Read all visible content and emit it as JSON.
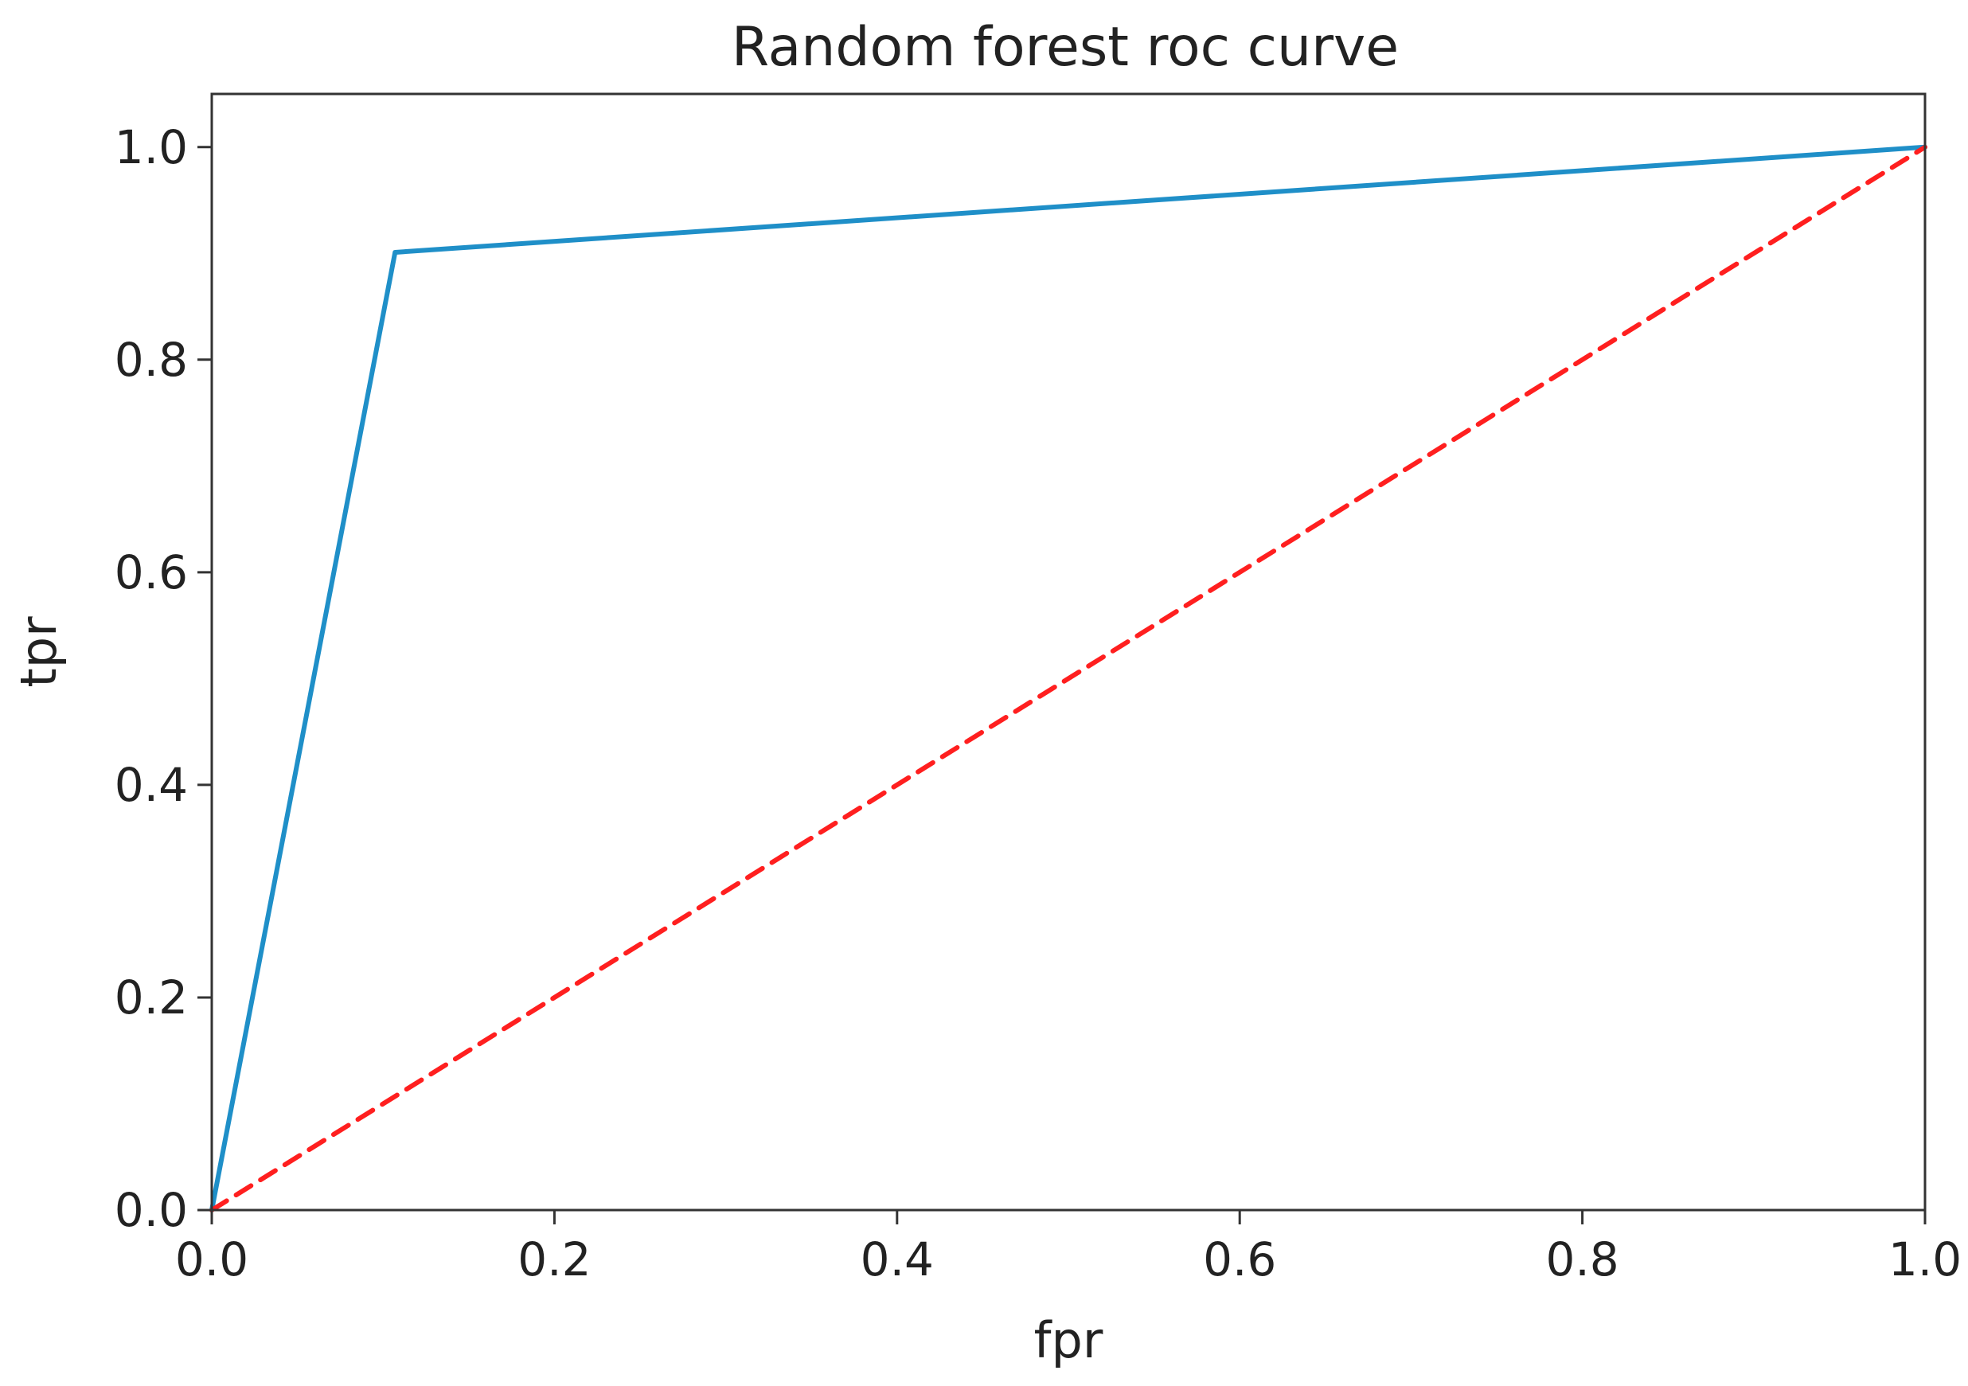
{
  "chart_data": {
    "type": "line",
    "title": "Random forest roc curve",
    "xlabel": "fpr",
    "ylabel": "tpr",
    "xlim": [
      0.0,
      1.0
    ],
    "ylim": [
      0.0,
      1.05
    ],
    "xticks": [
      0.0,
      0.2,
      0.4,
      0.6,
      0.8,
      1.0
    ],
    "yticks": [
      0.0,
      0.2,
      0.4,
      0.6,
      0.8,
      1.0
    ],
    "xtick_labels": [
      "0.0",
      "0.2",
      "0.4",
      "0.6",
      "0.8",
      "1.0"
    ],
    "ytick_labels": [
      "0.0",
      "0.2",
      "0.4",
      "0.6",
      "0.8",
      "1.0"
    ],
    "grid": false,
    "series": [
      {
        "x": [
          0.0,
          0.107,
          1.0
        ],
        "y": [
          0.0,
          0.901,
          1.0
        ],
        "color": "#1f8fc8",
        "style": "solid"
      },
      {
        "x": [
          0.0,
          1.0
        ],
        "y": [
          0.0,
          1.0
        ],
        "color": "#ff1f1f",
        "style": "dashed"
      }
    ]
  }
}
